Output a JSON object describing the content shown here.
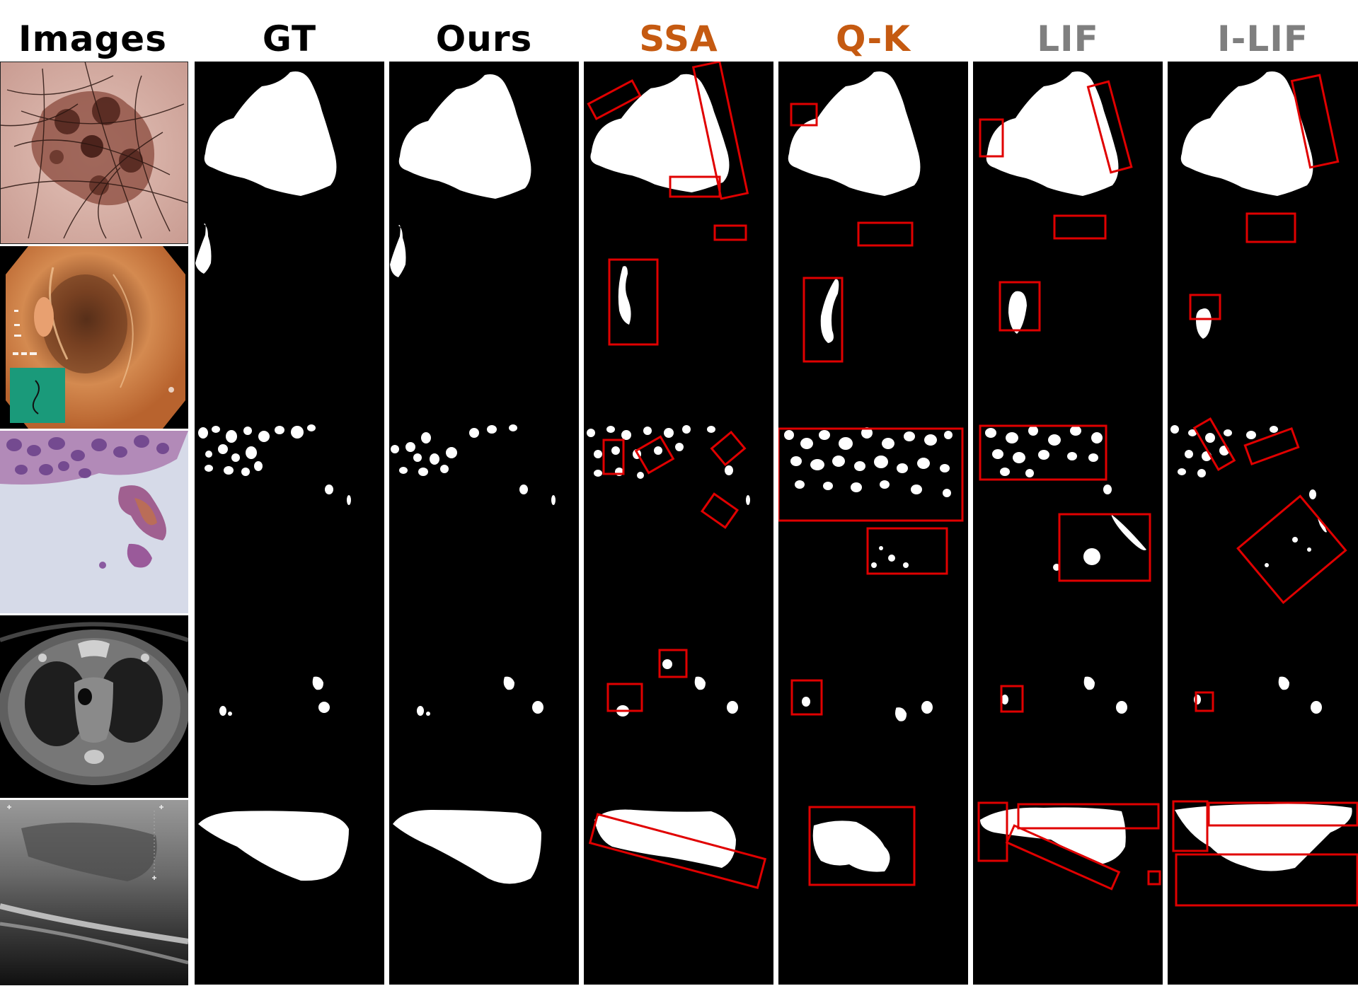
{
  "figure": {
    "columns": [
      {
        "label": "Images",
        "color": "#000000"
      },
      {
        "label": "GT",
        "color": "#000000"
      },
      {
        "label": "Ours",
        "color": "#000000"
      },
      {
        "label": "SSA",
        "color": "#C55A11"
      },
      {
        "label": "Q-K",
        "color": "#C55A11"
      },
      {
        "label": "LIF",
        "color": "#7F7F7F"
      },
      {
        "label": "I-LIF",
        "color": "#7F7F7F"
      }
    ],
    "rows": [
      {
        "modality": "dermoscopy"
      },
      {
        "modality": "colonoscopy"
      },
      {
        "modality": "histopathology"
      },
      {
        "modality": "chest-ct"
      },
      {
        "modality": "breast-ultrasound"
      }
    ],
    "highlight_color": "#E00000"
  }
}
